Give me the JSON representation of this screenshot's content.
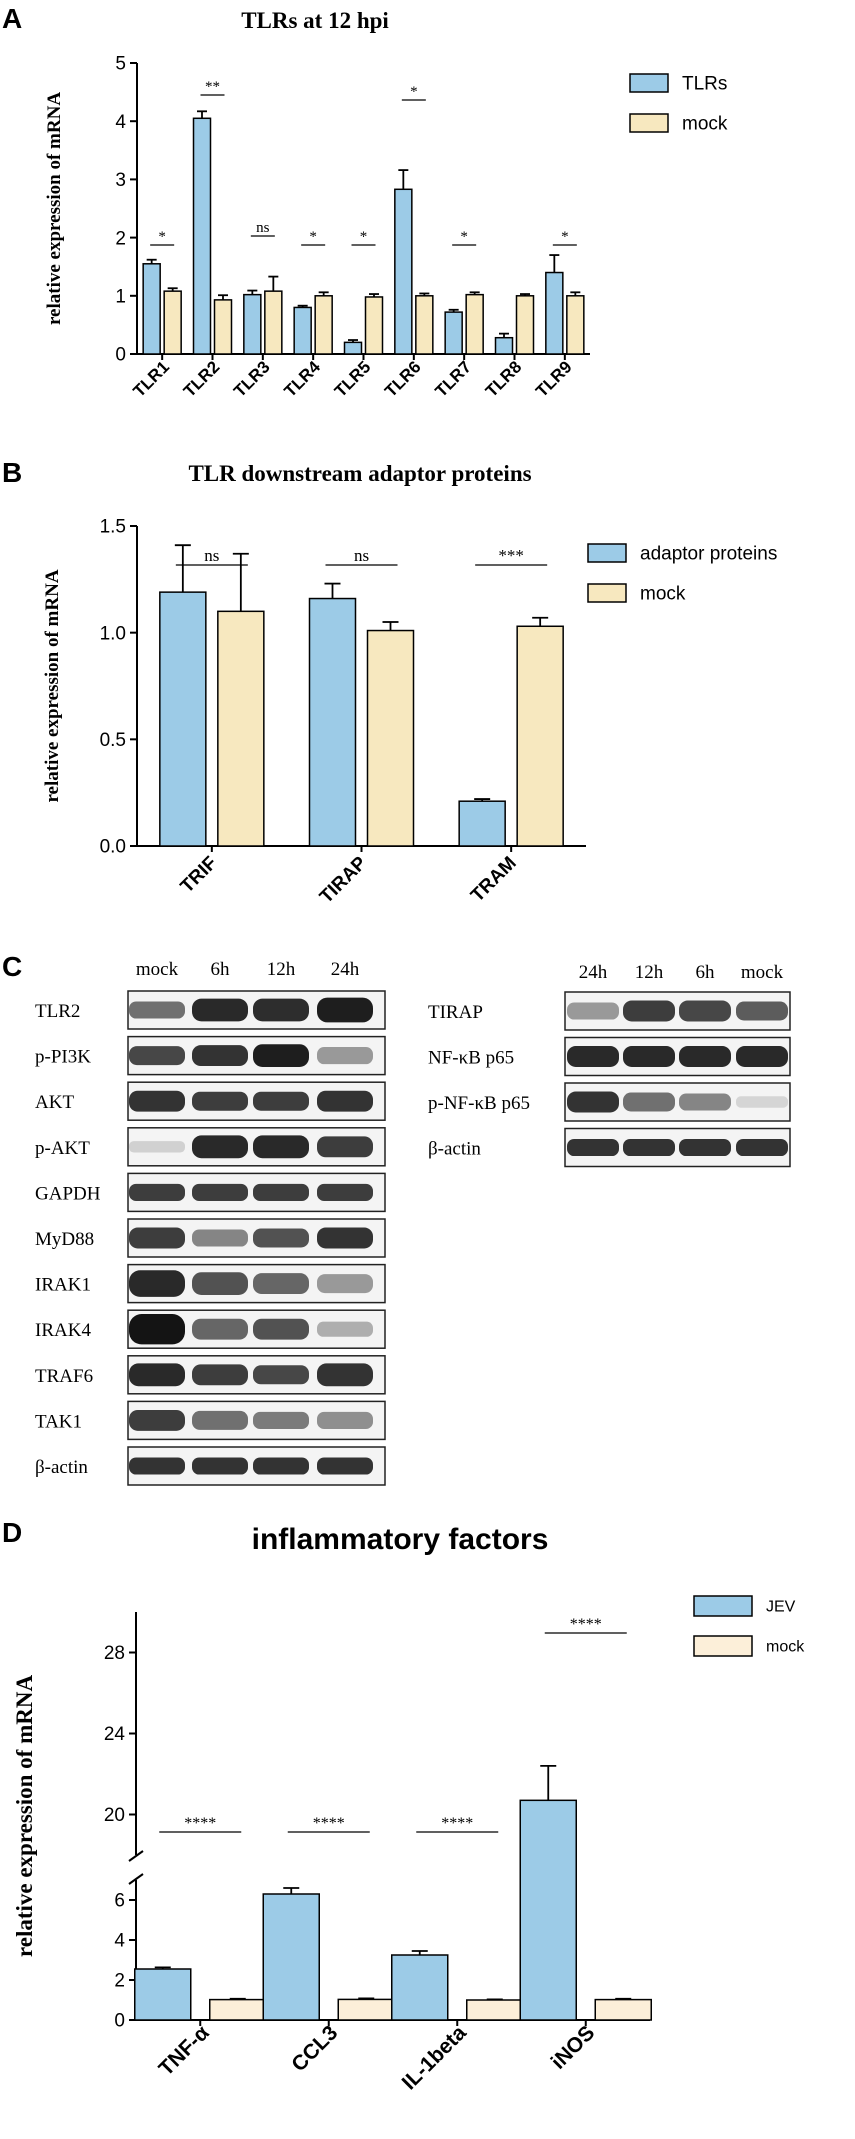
{
  "panels": {
    "A": "A",
    "B": "B",
    "C": "C",
    "D": "D"
  },
  "chart_data": [
    {
      "id": "A",
      "type": "bar",
      "title": "TLRs at 12 hpi",
      "ylabel": "relative expression of mRNA",
      "xlabel": "",
      "ylim": [
        0,
        5
      ],
      "yticks": [
        "0",
        "1",
        "2",
        "3",
        "4",
        "5"
      ],
      "categories": [
        "TLR1",
        "TLR2",
        "TLR3",
        "TLR4",
        "TLR5",
        "TLR6",
        "TLR7",
        "TLR8",
        "TLR9"
      ],
      "series": [
        {
          "name": "TLRs",
          "color": "#9ccbe7",
          "values": [
            1.55,
            4.05,
            1.02,
            0.8,
            0.2,
            2.83,
            0.72,
            0.28,
            1.4
          ],
          "errors": [
            0.07,
            0.12,
            0.07,
            0.03,
            0.04,
            0.33,
            0.04,
            0.07,
            0.3
          ]
        },
        {
          "name": "mock",
          "color": "#f7e8bf",
          "values": [
            1.08,
            0.93,
            1.08,
            1.0,
            0.98,
            1.0,
            1.02,
            1.0,
            1.0
          ],
          "errors": [
            0.05,
            0.08,
            0.25,
            0.06,
            0.05,
            0.04,
            0.04,
            0.03,
            0.06
          ]
        }
      ],
      "significance": [
        "*",
        "**",
        "ns",
        "*",
        "*",
        "*",
        "*",
        "",
        "*"
      ],
      "legend_position": "top-right",
      "grid": false
    },
    {
      "id": "B",
      "type": "bar",
      "title": "TLR downstream adaptor proteins",
      "ylabel": "relative expression of mRNA",
      "xlabel": "",
      "ylim": [
        0,
        1.5
      ],
      "yticks": [
        "0.0",
        "0.5",
        "1.0",
        "1.5"
      ],
      "categories": [
        "TRIF",
        "TIRAP",
        "TRAM"
      ],
      "series": [
        {
          "name": "adaptor proteins",
          "color": "#9ccbe7",
          "values": [
            1.19,
            1.16,
            0.21
          ],
          "errors": [
            0.22,
            0.07,
            0.01
          ]
        },
        {
          "name": "mock",
          "color": "#f7e8bf",
          "values": [
            1.1,
            1.01,
            1.03
          ],
          "errors": [
            0.27,
            0.04,
            0.04
          ]
        }
      ],
      "significance": [
        "ns",
        "ns",
        "***"
      ],
      "legend_position": "top-right",
      "grid": false
    },
    {
      "id": "D",
      "type": "bar",
      "title": "inflammatory factors",
      "ylabel": "relative expression of mRNA",
      "xlabel": "",
      "ylim": [
        0,
        30
      ],
      "axis_break": [
        7,
        18
      ],
      "yticks": [
        "0",
        "2",
        "4",
        "6",
        "20",
        "24",
        "28"
      ],
      "categories": [
        "TNF-α",
        "CCL3",
        "IL-1beta",
        "iNOS"
      ],
      "series": [
        {
          "name": "JEV",
          "color": "#9ccbe7",
          "values": [
            2.55,
            6.3,
            3.25,
            20.7
          ],
          "errors": [
            0.08,
            0.3,
            0.2,
            1.7
          ]
        },
        {
          "name": "mock",
          "color": "#fcefd9",
          "values": [
            1.02,
            1.03,
            1.0,
            1.02
          ],
          "errors": [
            0.04,
            0.05,
            0.03,
            0.04
          ]
        }
      ],
      "significance": [
        "****",
        "****",
        "****",
        "****"
      ],
      "legend_position": "top-right",
      "grid": false
    }
  ],
  "western_blot": {
    "left": {
      "lanes": [
        "mock",
        "6h",
        "12h",
        "24h"
      ],
      "rows": [
        {
          "label": "TLR2",
          "intensities": [
            0.55,
            0.9,
            0.88,
            0.95
          ],
          "heights": [
            0.45,
            0.6,
            0.6,
            0.65
          ]
        },
        {
          "label": "p-PI3K",
          "intensities": [
            0.75,
            0.85,
            0.95,
            0.35
          ],
          "heights": [
            0.5,
            0.55,
            0.6,
            0.45
          ]
        },
        {
          "label": "AKT",
          "intensities": [
            0.85,
            0.8,
            0.8,
            0.85
          ],
          "heights": [
            0.55,
            0.5,
            0.5,
            0.55
          ]
        },
        {
          "label": "p-AKT",
          "intensities": [
            0.08,
            0.9,
            0.9,
            0.8
          ],
          "heights": [
            0.3,
            0.6,
            0.6,
            0.55
          ]
        },
        {
          "label": "GAPDH",
          "intensities": [
            0.8,
            0.8,
            0.8,
            0.8
          ],
          "heights": [
            0.45,
            0.45,
            0.45,
            0.45
          ]
        },
        {
          "label": "MyD88",
          "intensities": [
            0.8,
            0.45,
            0.7,
            0.85
          ],
          "heights": [
            0.55,
            0.45,
            0.5,
            0.55
          ]
        },
        {
          "label": "IRAK1",
          "intensities": [
            0.9,
            0.7,
            0.6,
            0.35
          ],
          "heights": [
            0.7,
            0.6,
            0.55,
            0.5
          ]
        },
        {
          "label": "IRAK4",
          "intensities": [
            1.0,
            0.6,
            0.7,
            0.25
          ],
          "heights": [
            0.8,
            0.55,
            0.55,
            0.4
          ]
        },
        {
          "label": "TRAF6",
          "intensities": [
            0.9,
            0.8,
            0.75,
            0.85
          ],
          "heights": [
            0.6,
            0.55,
            0.5,
            0.6
          ]
        },
        {
          "label": "TAK1",
          "intensities": [
            0.8,
            0.55,
            0.5,
            0.4
          ],
          "heights": [
            0.55,
            0.5,
            0.45,
            0.45
          ]
        },
        {
          "label": "β-actin",
          "intensities": [
            0.85,
            0.85,
            0.85,
            0.85
          ],
          "heights": [
            0.45,
            0.45,
            0.45,
            0.45
          ]
        }
      ]
    },
    "right": {
      "lanes": [
        "24h",
        "12h",
        "6h",
        "mock"
      ],
      "rows": [
        {
          "label": "TIRAP",
          "intensities": [
            0.35,
            0.8,
            0.75,
            0.65
          ],
          "heights": [
            0.45,
            0.55,
            0.55,
            0.5
          ]
        },
        {
          "label": "NF-κB p65",
          "intensities": [
            0.9,
            0.9,
            0.9,
            0.9
          ],
          "heights": [
            0.55,
            0.55,
            0.55,
            0.55
          ]
        },
        {
          "label": "p-NF-κB p65",
          "intensities": [
            0.85,
            0.55,
            0.45,
            0.06
          ],
          "heights": [
            0.55,
            0.5,
            0.45,
            0.3
          ]
        },
        {
          "label": "β-actin",
          "intensities": [
            0.85,
            0.85,
            0.85,
            0.85
          ],
          "heights": [
            0.45,
            0.45,
            0.45,
            0.45
          ]
        }
      ]
    }
  }
}
